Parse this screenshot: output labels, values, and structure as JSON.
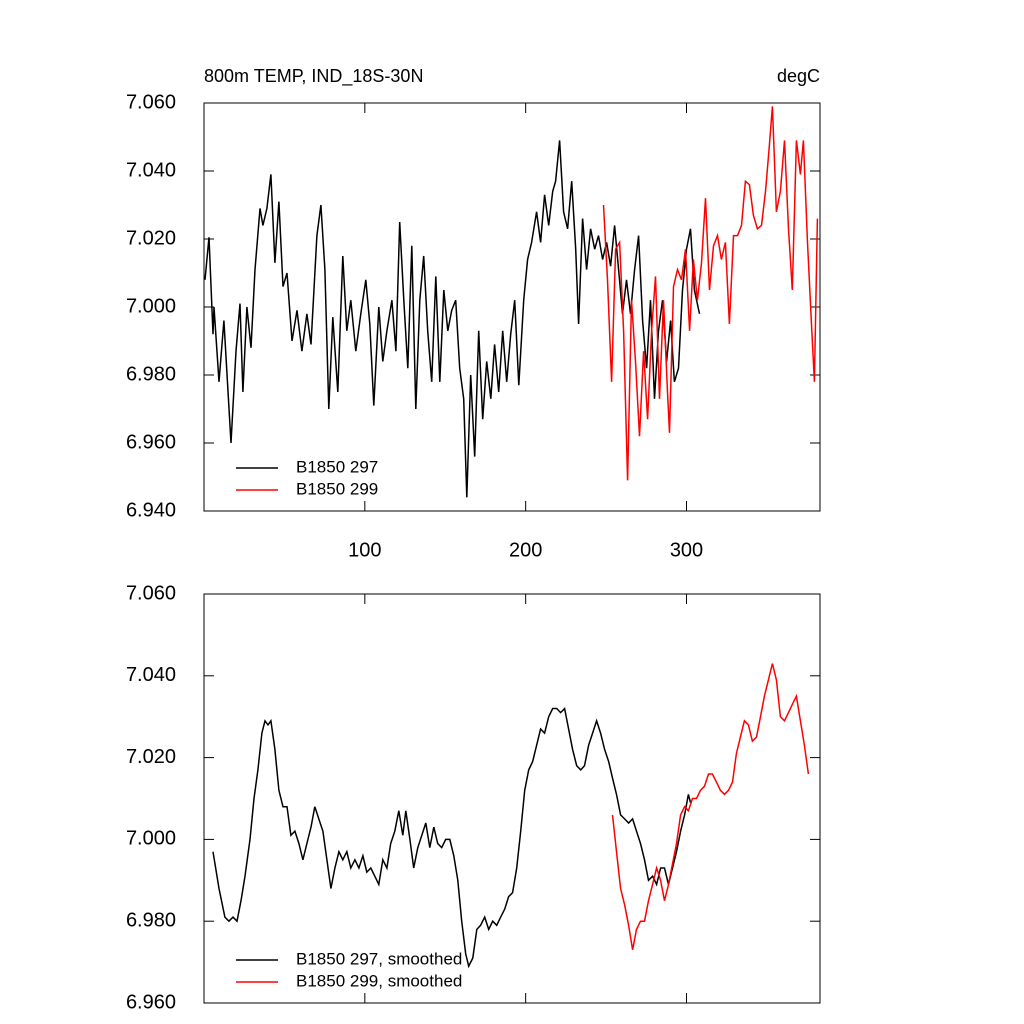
{
  "chart_data": [
    {
      "type": "line",
      "title": "800m TEMP, IND_18S-30N",
      "units": "degC",
      "xlim": [
        0,
        383
      ],
      "xticks": [
        100,
        200,
        300
      ],
      "xtick_labels": true,
      "ylim": [
        6.94,
        7.06
      ],
      "yticks": [
        {
          "value": 6.94,
          "label": "6.940"
        },
        {
          "value": 6.96,
          "label": "6.960"
        },
        {
          "value": 6.98,
          "label": "6.980"
        },
        {
          "value": 7.0,
          "label": "7.000"
        },
        {
          "value": 7.02,
          "label": "7.020"
        },
        {
          "value": 7.04,
          "label": "7.040"
        },
        {
          "value": 7.06,
          "label": "7.060"
        }
      ],
      "legend": "lower left",
      "series": [
        {
          "name": "B1850 297",
          "color": "#000000",
          "x": [
            0.6,
            3.1,
            5.6,
            6.2,
            9.3,
            12.4,
            16.8,
            19.9,
            22.4,
            24.2,
            26.7,
            29.2,
            31.7,
            34.8,
            36.6,
            39.1,
            41.6,
            44.1,
            46.6,
            49.1,
            51.6,
            54.7,
            57.8,
            60.9,
            64.0,
            66.5,
            70.2,
            72.7,
            75.2,
            77.6,
            80.1,
            83.2,
            86.3,
            88.8,
            91.3,
            94.4,
            97.5,
            100.6,
            103.1,
            105.6,
            108.7,
            111.2,
            113.7,
            116.8,
            119.3,
            121.7,
            124.2,
            126.7,
            129.2,
            131.7,
            134.2,
            136.6,
            139.1,
            141.6,
            144.1,
            146.6,
            149.1,
            151.6,
            154.0,
            156.5,
            159.0,
            161.5,
            163.4,
            165.8,
            168.3,
            170.8,
            173.3,
            175.8,
            178.3,
            180.7,
            183.2,
            185.7,
            188.2,
            190.7,
            193.2,
            195.7,
            198.8,
            201.2,
            203.7,
            206.8,
            209.3,
            211.8,
            214.3,
            216.8,
            218.6,
            221.1,
            223.6,
            226.1,
            228.6,
            231.1,
            232.9,
            235.4,
            237.9,
            240.4,
            242.9,
            245.3,
            247.8,
            250.3,
            252.8,
            255.3,
            257.8,
            260.2,
            262.7,
            265.2,
            267.7,
            270.2,
            272.7,
            275.2,
            277.6,
            280.1,
            282.6,
            285.1,
            287.6,
            290.1,
            292.5,
            295.0,
            297.5,
            300.0,
            302.5,
            304.9,
            308.1
          ],
          "values": [
            7.008,
            7.0205,
            6.992,
            7.0,
            6.978,
            6.996,
            6.96,
            6.987,
            7.001,
            6.975,
            7.0,
            6.988,
            7.011,
            7.029,
            7.024,
            7.029,
            7.039,
            7.013,
            7.031,
            7.006,
            7.01,
            6.99,
            6.999,
            6.987,
            6.998,
            6.989,
            7.021,
            7.03,
            7.011,
            6.97,
            6.997,
            6.975,
            7.015,
            6.993,
            7.002,
            6.987,
            6.998,
            7.008,
            6.995,
            6.971,
            7.0,
            6.984,
            6.993,
            7.002,
            6.987,
            7.025,
            7.002,
            6.982,
            7.018,
            6.97,
            7.002,
            7.015,
            6.993,
            6.978,
            7.009,
            6.978,
            7.005,
            6.993,
            6.999,
            7.002,
            6.982,
            6.973,
            6.944,
            6.98,
            6.956,
            6.993,
            6.967,
            6.984,
            6.973,
            6.989,
            6.975,
            6.993,
            6.978,
            6.992,
            7.002,
            6.977,
            7.002,
            7.014,
            7.019,
            7.028,
            7.019,
            7.033,
            7.024,
            7.034,
            7.037,
            7.049,
            7.028,
            7.023,
            7.037,
            7.017,
            6.995,
            7.026,
            7.011,
            7.023,
            7.017,
            7.021,
            7.014,
            7.019,
            7.012,
            7.024,
            7.011,
            6.998,
            7.008,
            6.998,
            7.011,
            7.021,
            6.996,
            6.982,
            7.002,
            6.973,
            6.993,
            7.002,
            6.984,
            6.996,
            6.978,
            6.982,
            7.005,
            7.017,
            7.023,
            7.005,
            6.998
          ]
        },
        {
          "name": "B1850 299",
          "color": "#ff0000",
          "x": [
            248.4,
            250.9,
            253.4,
            255.9,
            258.4,
            260.9,
            263.4,
            265.8,
            268.3,
            270.8,
            273.3,
            275.8,
            278.3,
            280.7,
            283.2,
            285.7,
            288.2,
            289.4,
            291.9,
            294.4,
            296.9,
            299.4,
            301.9,
            304.3,
            306.8,
            309.3,
            311.8,
            314.3,
            316.8,
            319.3,
            321.7,
            324.2,
            326.7,
            329.2,
            331.7,
            334.2,
            336.6,
            339.1,
            341.6,
            344.1,
            346.6,
            349.1,
            351.6,
            353.4,
            355.9,
            358.4,
            360.9,
            363.4,
            365.8,
            368.3,
            370.8,
            372.7,
            375.2,
            377.6,
            379.5,
            381.4
          ],
          "values": [
            7.03,
            7.008,
            6.978,
            7.017,
            7.019,
            6.993,
            6.949,
            7.002,
            6.984,
            6.962,
            6.987,
            6.967,
            6.993,
            7.009,
            6.973,
            7.002,
            6.975,
            6.963,
            7.006,
            7.011,
            7.008,
            7.017,
            6.993,
            7.014,
            7.002,
            7.013,
            7.032,
            7.005,
            7.018,
            7.021,
            7.014,
            7.019,
            6.995,
            7.021,
            7.021,
            7.024,
            7.037,
            7.036,
            7.027,
            7.023,
            7.024,
            7.034,
            7.048,
            7.059,
            7.028,
            7.034,
            7.049,
            7.023,
            7.005,
            7.049,
            7.039,
            7.049,
            7.019,
            6.996,
            6.978,
            7.026
          ]
        }
      ]
    },
    {
      "type": "line",
      "xlim": [
        0,
        383
      ],
      "xticks": [
        100,
        200,
        300
      ],
      "xtick_labels": false,
      "ylim": [
        6.96,
        7.06
      ],
      "yticks": [
        {
          "value": 6.96,
          "label": "6.960"
        },
        {
          "value": 6.98,
          "label": "6.980"
        },
        {
          "value": 7.0,
          "label": "7.000"
        },
        {
          "value": 7.02,
          "label": "7.020"
        },
        {
          "value": 7.04,
          "label": "7.040"
        },
        {
          "value": 7.06,
          "label": "7.060"
        }
      ],
      "legend": "lower left",
      "series": [
        {
          "name": "B1850 297, smoothed",
          "color": "#000000",
          "x": [
            5.6,
            9.3,
            13.0,
            15.5,
            18.0,
            20.5,
            23.0,
            25.5,
            28.6,
            31.1,
            33.5,
            36.0,
            37.9,
            39.8,
            41.6,
            44.1,
            46.6,
            49.1,
            51.6,
            54.0,
            56.5,
            59.0,
            61.5,
            64.0,
            66.5,
            68.9,
            71.4,
            73.9,
            76.4,
            78.9,
            81.4,
            83.9,
            86.3,
            88.8,
            91.3,
            93.8,
            96.3,
            98.8,
            101.2,
            103.7,
            106.2,
            108.7,
            111.2,
            113.7,
            116.1,
            118.6,
            121.1,
            123.6,
            125.5,
            128.0,
            130.4,
            132.9,
            135.4,
            137.9,
            140.4,
            142.9,
            145.3,
            147.8,
            150.3,
            152.8,
            155.3,
            157.8,
            160.2,
            162.7,
            164.6,
            167.1,
            169.6,
            172.0,
            174.5,
            177.0,
            179.5,
            182.0,
            184.5,
            187.0,
            189.4,
            191.9,
            194.4,
            196.9,
            199.4,
            201.9,
            204.3,
            206.8,
            209.3,
            211.8,
            214.3,
            216.8,
            219.3,
            221.7,
            224.2,
            226.7,
            229.2,
            231.7,
            234.2,
            236.6,
            239.1,
            241.6,
            244.1,
            246.6,
            249.1,
            251.6,
            254.0,
            256.5,
            259.0,
            261.5,
            264.0,
            266.5,
            268.9,
            271.4,
            273.9,
            276.4,
            278.9,
            281.4,
            283.9,
            286.3,
            288.8,
            291.3,
            293.8,
            296.3,
            298.8,
            301.2,
            302.5
          ],
          "values": [
            6.997,
            6.988,
            6.981,
            6.98,
            6.981,
            6.98,
            6.985,
            6.991,
            7.0,
            7.01,
            7.017,
            7.026,
            7.029,
            7.028,
            7.029,
            7.022,
            7.012,
            7.008,
            7.008,
            7.001,
            7.002,
            6.999,
            6.995,
            6.999,
            7.003,
            7.008,
            7.005,
            7.002,
            6.995,
            6.988,
            6.993,
            6.997,
            6.995,
            6.997,
            6.993,
            6.995,
            6.993,
            6.996,
            6.992,
            6.993,
            6.991,
            6.989,
            6.995,
            6.993,
            6.999,
            7.002,
            7.007,
            7.001,
            7.007,
            7.0,
            6.993,
            6.998,
            7.001,
            7.004,
            6.998,
            7.003,
            6.999,
            6.998,
            7.0,
            7.0,
            6.996,
            6.99,
            6.98,
            6.972,
            6.969,
            6.971,
            6.978,
            6.979,
            6.981,
            6.978,
            6.98,
            6.979,
            6.981,
            6.983,
            6.986,
            6.987,
            6.993,
            7.002,
            7.012,
            7.017,
            7.019,
            7.023,
            7.027,
            7.026,
            7.03,
            7.032,
            7.032,
            7.031,
            7.032,
            7.027,
            7.022,
            7.018,
            7.017,
            7.018,
            7.023,
            7.026,
            7.029,
            7.026,
            7.022,
            7.019,
            7.015,
            7.011,
            7.006,
            7.005,
            7.004,
            7.005,
            7.002,
            6.999,
            6.995,
            6.99,
            6.991,
            6.989,
            6.993,
            6.993,
            6.989,
            6.993,
            6.997,
            7.002,
            7.006,
            7.011,
            7.009
          ]
        },
        {
          "name": "B1850 299, smoothed",
          "color": "#ff0000",
          "x": [
            254.0,
            256.5,
            259.0,
            261.5,
            264.0,
            266.5,
            268.9,
            271.4,
            273.9,
            276.4,
            278.9,
            281.4,
            283.9,
            286.3,
            288.8,
            291.3,
            293.8,
            296.3,
            298.8,
            301.2,
            303.7,
            306.2,
            308.7,
            311.2,
            313.7,
            316.1,
            318.6,
            321.1,
            323.6,
            326.1,
            328.6,
            331.0,
            333.5,
            336.0,
            338.5,
            341.0,
            343.5,
            346.0,
            348.4,
            350.9,
            353.4,
            355.9,
            358.4,
            360.9,
            363.4,
            365.8,
            368.3,
            370.8,
            373.3,
            375.8
          ],
          "values": [
            7.006,
            6.997,
            6.988,
            6.984,
            6.979,
            6.973,
            6.978,
            6.98,
            6.98,
            6.985,
            6.989,
            6.993,
            6.99,
            6.985,
            6.989,
            6.994,
            6.999,
            7.006,
            7.008,
            7.007,
            7.01,
            7.01,
            7.012,
            7.013,
            7.016,
            7.016,
            7.014,
            7.012,
            7.011,
            7.012,
            7.014,
            7.021,
            7.025,
            7.029,
            7.028,
            7.024,
            7.025,
            7.03,
            7.035,
            7.039,
            7.043,
            7.039,
            7.03,
            7.029,
            7.031,
            7.033,
            7.035,
            7.029,
            7.023,
            7.016
          ]
        }
      ]
    }
  ]
}
